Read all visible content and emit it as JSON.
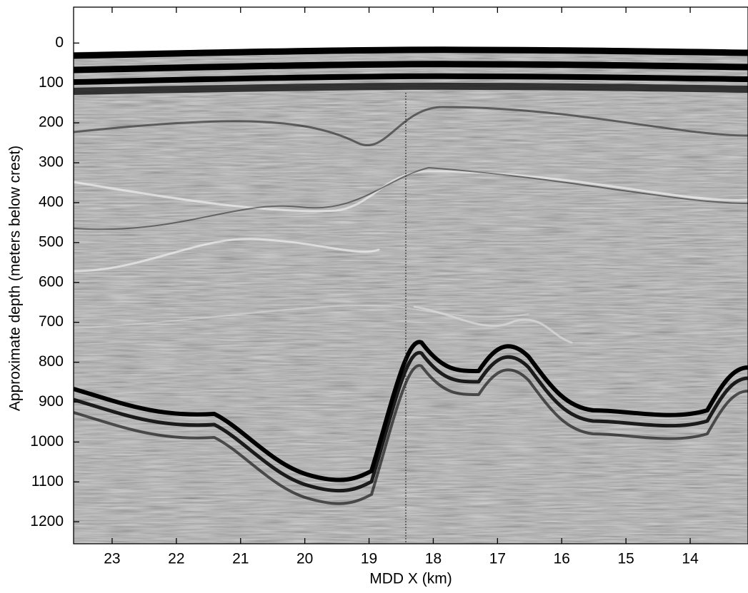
{
  "chart_data": {
    "type": "radargram",
    "xlabel": "MDD X (km)",
    "ylabel": "Approximate depth (meters below crest)",
    "xlim": [
      23.6,
      13.1
    ],
    "xticks": [
      23,
      22,
      21,
      20,
      19,
      18,
      17,
      16,
      15,
      14
    ],
    "ylim": [
      1255,
      -90
    ],
    "yticks": [
      0,
      100,
      200,
      300,
      400,
      500,
      600,
      700,
      800,
      900,
      1000,
      1100,
      1200
    ]
  }
}
